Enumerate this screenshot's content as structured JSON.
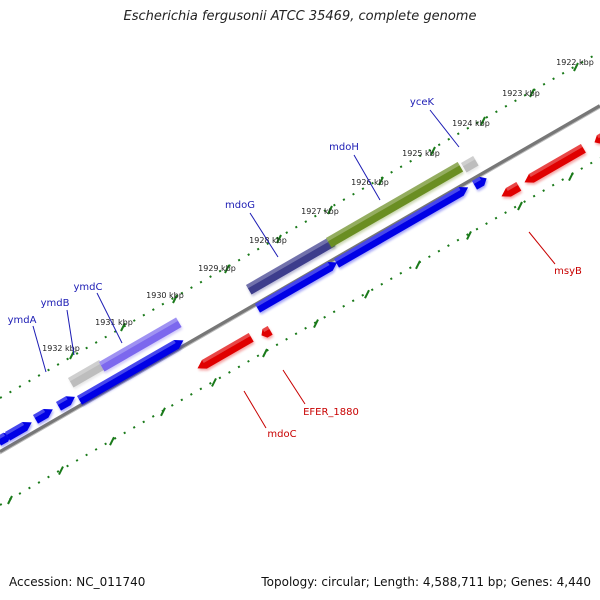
{
  "title": "Escherichia fergusonii ATCC 35469, complete genome",
  "footer": {
    "accession": "Accession: NC_011740",
    "summary": "Topology: circular; Length: 4,588,711 bp; Genes: 4,440"
  },
  "colors": {
    "forward_gene": "#0000e6",
    "reverse_gene": "#e00000",
    "highlight_green": "#6b8e23",
    "highlight_purple": "#7b68ee",
    "highlight_navy": "#3c3c8c",
    "pseudo_grey": "#bdbdbd",
    "tick_green": "#1a7a1a",
    "backbone_grey": "#777777",
    "forward_label": "#1c1cb4",
    "reverse_label": "#c80000"
  },
  "scale_ticks": [
    "1922 kbp",
    "1923 kbp",
    "1924 kbp",
    "1925 kbp",
    "1926 kbp",
    "1927 kbp",
    "1928 kbp",
    "1929 kbp",
    "1930 kbp",
    "1931 kbp",
    "1932 kbp"
  ],
  "forward_labels": [
    "yceK",
    "mdoH",
    "mdoG",
    "ymdC",
    "ymdB",
    "ymdA"
  ],
  "reverse_labels": [
    "msyB",
    "EFER_1880",
    "mdoC"
  ]
}
